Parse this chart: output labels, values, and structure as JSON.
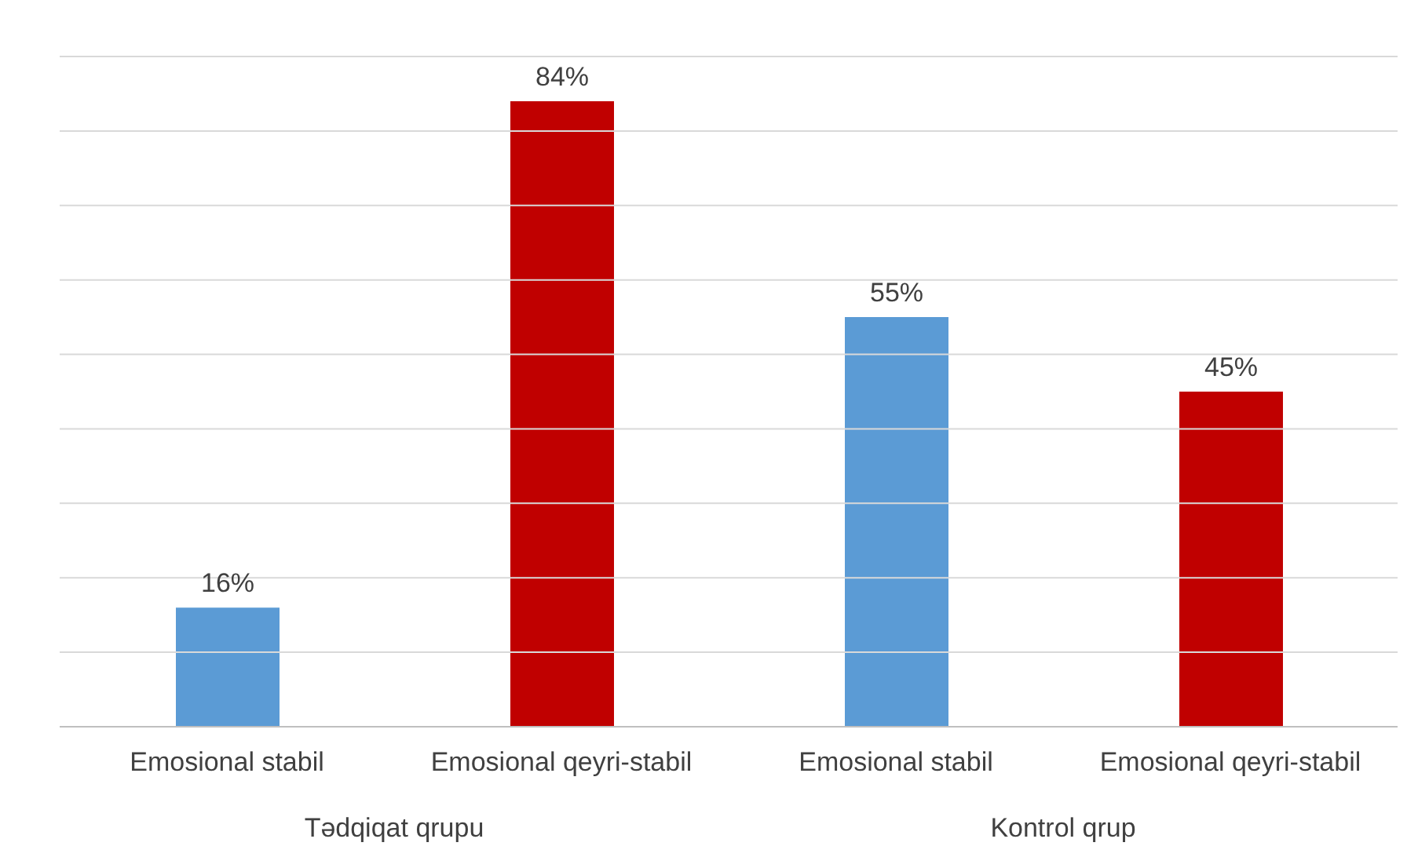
{
  "chart_data": {
    "type": "bar",
    "categories": [
      "Emosional stabil",
      "Emosional qeyri-stabil",
      "Emosional stabil",
      "Emosional qeyri-stabil"
    ],
    "values": [
      16,
      84,
      55,
      45
    ],
    "colors": [
      "#5b9bd5",
      "#c00000",
      "#5b9bd5",
      "#c00000"
    ],
    "value_labels": [
      "16%",
      "84%",
      "55%",
      "45%"
    ],
    "ylim": [
      0,
      90
    ],
    "yticks": [
      {
        "value": 0,
        "label": null
      },
      {
        "value": 10,
        "label": null
      },
      {
        "value": 20,
        "label": null
      },
      {
        "value": 30,
        "label": null
      },
      {
        "value": 40,
        "label": null
      },
      {
        "value": 50,
        "label": null
      },
      {
        "value": 60,
        "label": null
      },
      {
        "value": 70,
        "label": null
      },
      {
        "value": 80,
        "label": null
      },
      {
        "value": 90,
        "label": null
      }
    ],
    "tick_labels": "x",
    "grid": "y",
    "annotations": [
      "Tədqiqat qrupu",
      "Kontrol qrup"
    ]
  }
}
